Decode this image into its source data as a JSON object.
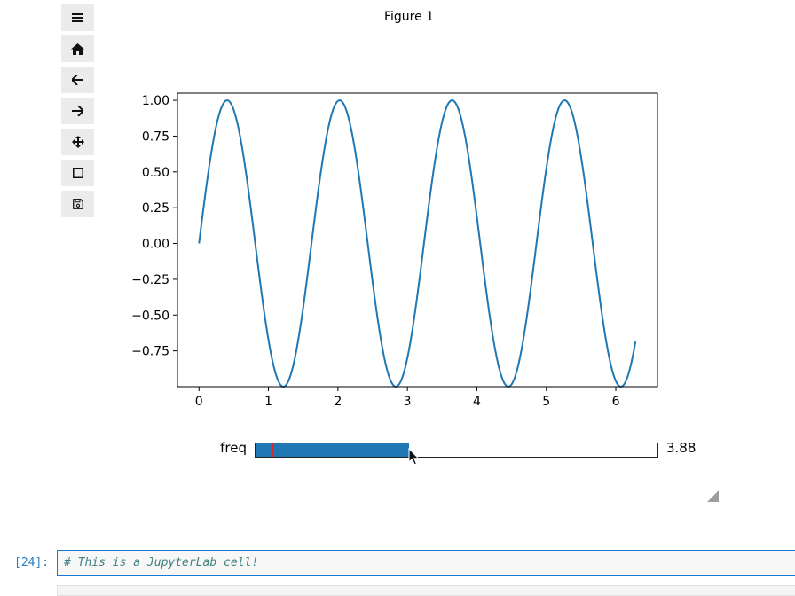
{
  "figure": {
    "title": "Figure 1"
  },
  "toolbar": {
    "items": [
      {
        "name": "menu",
        "icon": "hamburger-menu-icon"
      },
      {
        "name": "home",
        "icon": "home-icon"
      },
      {
        "name": "back",
        "icon": "arrow-left-icon"
      },
      {
        "name": "forward",
        "icon": "arrow-right-icon"
      },
      {
        "name": "pan",
        "icon": "move-arrows-icon"
      },
      {
        "name": "zoom",
        "icon": "zoom-rect-icon"
      },
      {
        "name": "save",
        "icon": "save-disk-icon"
      }
    ]
  },
  "chart_data": {
    "type": "line",
    "function": "sin(freq * x)",
    "x_range": [
      0,
      6.283
    ],
    "series": [
      {
        "freq": 3.88,
        "color": "#1f77b4"
      }
    ],
    "xticks": [
      0,
      1,
      2,
      3,
      4,
      5,
      6
    ],
    "yticks": [
      1.0,
      0.75,
      0.5,
      0.25,
      0.0,
      -0.25,
      -0.5,
      -0.75
    ],
    "xtick_labels": [
      "0",
      "1",
      "2",
      "3",
      "4",
      "5",
      "6"
    ],
    "ytick_labels": [
      "1.00",
      "0.75",
      "0.50",
      "0.25",
      "0.00",
      "−0.25",
      "−0.50",
      "−0.75"
    ],
    "xlim": [
      -0.31,
      6.6
    ],
    "ylim": [
      -1.0,
      1.05
    ],
    "grid": false
  },
  "slider": {
    "label": "freq",
    "min": 0.1,
    "max": 10.0,
    "value": 3.88,
    "value_text": "3.88",
    "initial_value": 0.5,
    "fill_color": "#1f77b4",
    "marker_color": "#d62728"
  },
  "cell": {
    "prompt": "[24]:",
    "source": "# This is a JupyterLab cell!"
  }
}
